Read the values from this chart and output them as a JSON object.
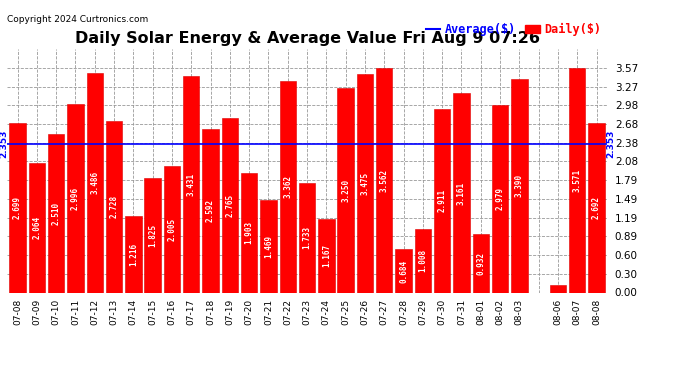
{
  "title": "Daily Solar Energy & Average Value Fri Aug 9 07:26",
  "copyright": "Copyright 2024 Curtronics.com",
  "average_label": "Average($)",
  "daily_label": "Daily($)",
  "average_value": 2.353,
  "categories": [
    "07-08",
    "07-09",
    "07-10",
    "07-11",
    "07-12",
    "07-13",
    "07-14",
    "07-15",
    "07-16",
    "07-17",
    "07-18",
    "07-19",
    "07-20",
    "07-21",
    "07-22",
    "07-23",
    "07-24",
    "07-25",
    "07-26",
    "07-27",
    "07-28",
    "07-29",
    "07-30",
    "07-31",
    "08-01",
    "08-02",
    "08-03",
    "",
    "08-06",
    "08-07",
    "08-08"
  ],
  "values": [
    2.699,
    2.064,
    2.51,
    2.996,
    3.486,
    2.728,
    1.216,
    1.825,
    2.005,
    3.431,
    2.592,
    2.765,
    1.903,
    1.469,
    3.362,
    1.733,
    1.167,
    3.25,
    3.475,
    3.562,
    0.684,
    1.008,
    2.911,
    3.161,
    0.932,
    2.979,
    3.39,
    0.0,
    0.125,
    3.571,
    2.692
  ],
  "bar_color": "#ff0000",
  "bar_edge_color": "#dd0000",
  "average_line_color": "#0000ff",
  "background_color": "#ffffff",
  "grid_color": "#999999",
  "ylim": [
    0.0,
    3.87
  ],
  "yticks": [
    0.0,
    0.3,
    0.6,
    0.89,
    1.19,
    1.49,
    1.79,
    2.08,
    2.38,
    2.68,
    2.98,
    3.27,
    3.57
  ],
  "value_label_color": "#ffffff",
  "value_label_fontsize": 5.5,
  "xlabel_fontsize": 6.5,
  "title_fontsize": 11.5,
  "copyright_fontsize": 6.5,
  "legend_fontsize": 8.5
}
